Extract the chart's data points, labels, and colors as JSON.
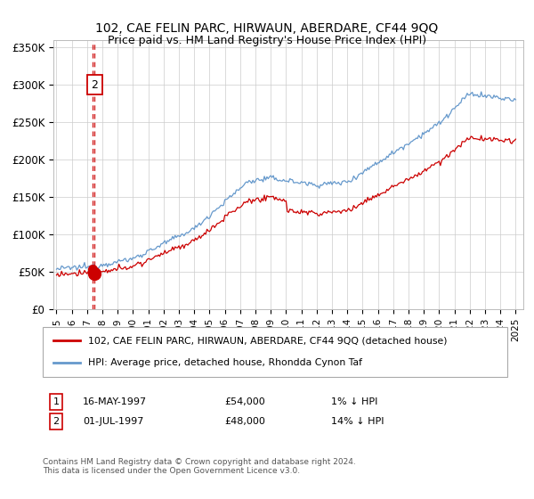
{
  "title": "102, CAE FELIN PARC, HIRWAUN, ABERDARE, CF44 9QQ",
  "subtitle": "Price paid vs. HM Land Registry's House Price Index (HPI)",
  "legend_line1": "102, CAE FELIN PARC, HIRWAUN, ABERDARE, CF44 9QQ (detached house)",
  "legend_line2": "HPI: Average price, detached house, Rhondda Cynon Taf",
  "transaction1_num": "1",
  "transaction1_date": "16-MAY-1997",
  "transaction1_price": "£54,000",
  "transaction1_hpi": "1% ↓ HPI",
  "transaction2_num": "2",
  "transaction2_date": "01-JUL-1997",
  "transaction2_price": "£48,000",
  "transaction2_hpi": "14% ↓ HPI",
  "footnote": "Contains HM Land Registry data © Crown copyright and database right 2024.\nThis data is licensed under the Open Government Licence v3.0.",
  "hpi_line_color": "#6699cc",
  "price_line_color": "#cc0000",
  "dashed_vline_color": "#cc0000",
  "marker_color": "#cc0000",
  "annotation_box_color": "#cc0000",
  "ylim": [
    0,
    360000
  ],
  "yticks": [
    0,
    50000,
    100000,
    150000,
    200000,
    250000,
    300000,
    350000
  ],
  "ytick_labels": [
    "£0",
    "£50K",
    "£100K",
    "£150K",
    "£200K",
    "£250K",
    "£300K",
    "£350K"
  ],
  "xstart_year": 1995,
  "xend_year": 2025
}
